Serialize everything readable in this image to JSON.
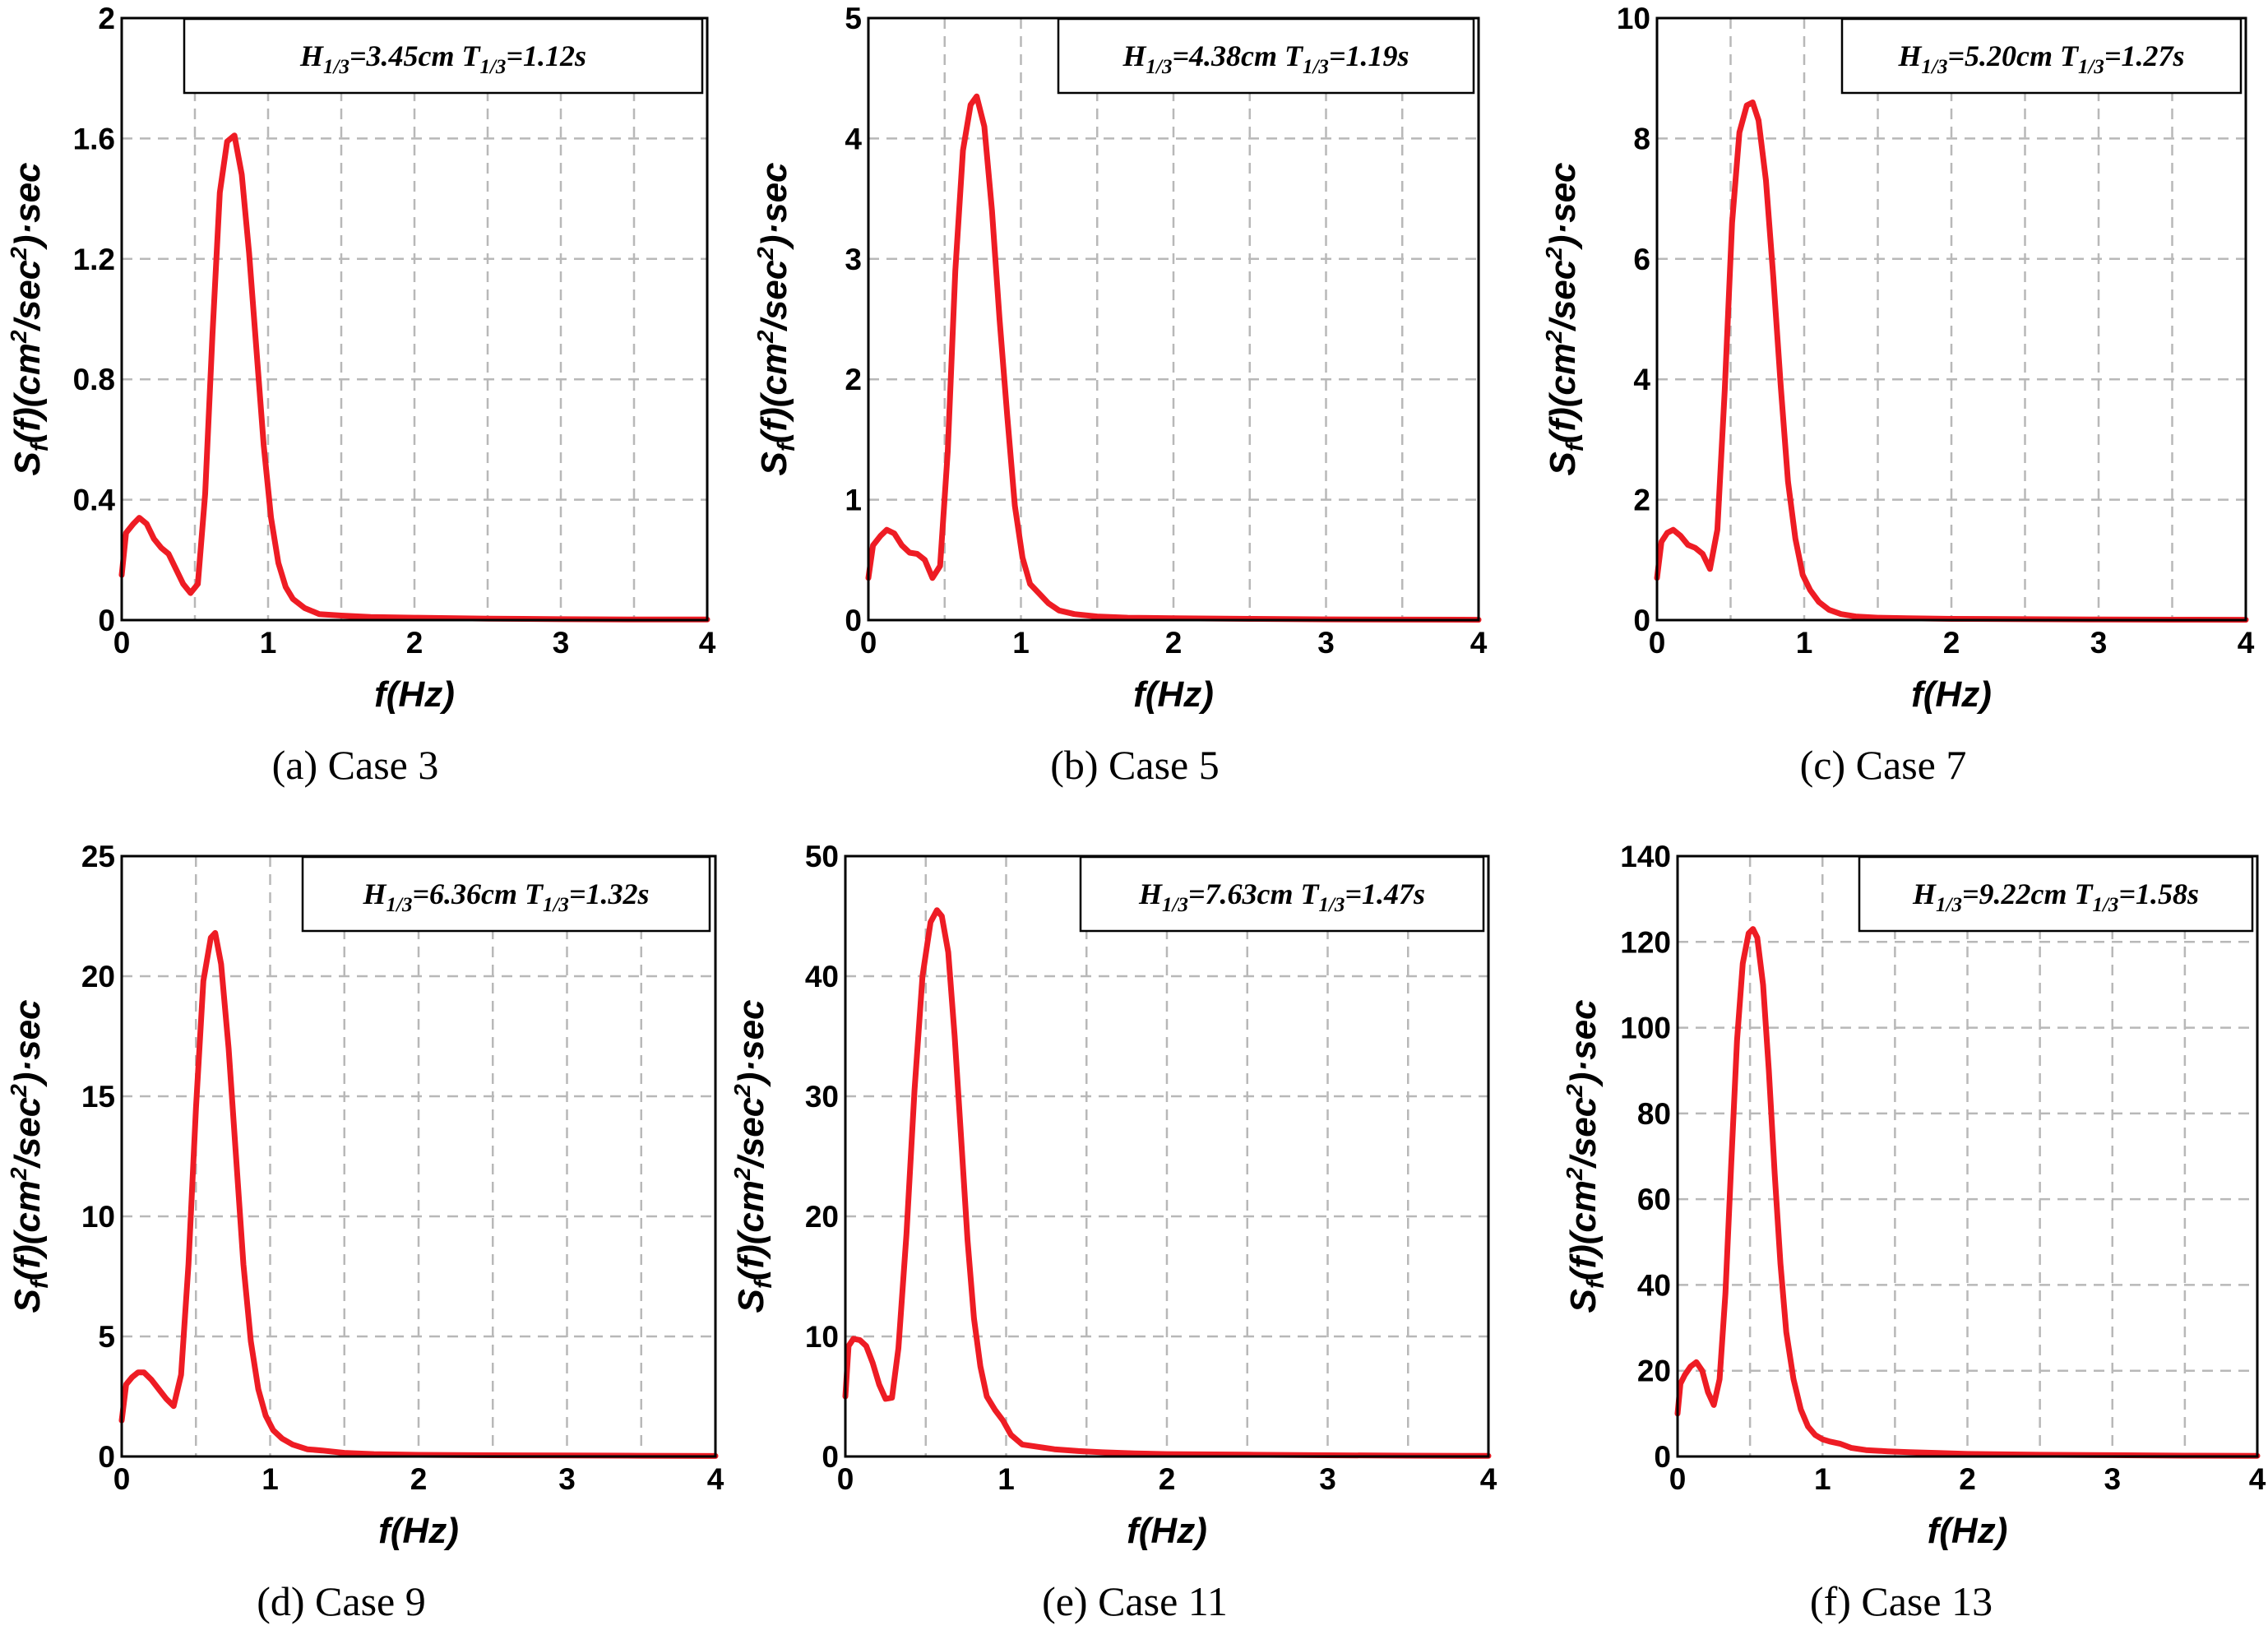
{
  "chart_data": [
    {
      "type": "line",
      "caption": "(a) Case 3",
      "legend": {
        "h_label": "H",
        "h_sub": "1/3",
        "h_value": "=3.45cm",
        "t_label": "T",
        "t_sub": "1/3",
        "t_value": "=1.12s"
      },
      "xlabel": "f(Hz)",
      "ylabel": "Sf(f)(cm2/sec2)·sec",
      "xlim": [
        0,
        4
      ],
      "ylim": [
        0,
        2
      ],
      "xticks": [
        0,
        1,
        2,
        3,
        4
      ],
      "yticks": [
        0,
        0.4,
        0.8,
        1.2,
        1.6,
        2
      ],
      "ytick_labels": [
        "0",
        "0.4",
        "0.8",
        "1.2",
        "1.6",
        "2"
      ],
      "grid": true,
      "series": [
        {
          "name": "Sf(f)",
          "color": "#ee1c24",
          "x": [
            0,
            0.03,
            0.08,
            0.12,
            0.17,
            0.22,
            0.27,
            0.32,
            0.37,
            0.42,
            0.47,
            0.52,
            0.57,
            0.62,
            0.67,
            0.72,
            0.77,
            0.82,
            0.87,
            0.92,
            0.97,
            1.02,
            1.07,
            1.12,
            1.17,
            1.25,
            1.35,
            1.5,
            1.7,
            2.0,
            2.5,
            3.0,
            3.5,
            4.0
          ],
          "y": [
            0.15,
            0.29,
            0.32,
            0.34,
            0.32,
            0.27,
            0.24,
            0.22,
            0.17,
            0.12,
            0.09,
            0.12,
            0.42,
            0.95,
            1.42,
            1.59,
            1.61,
            1.48,
            1.22,
            0.9,
            0.58,
            0.34,
            0.19,
            0.11,
            0.07,
            0.04,
            0.02,
            0.015,
            0.01,
            0.008,
            0.005,
            0.003,
            0.002,
            0.002
          ]
        }
      ]
    },
    {
      "type": "line",
      "caption": "(b) Case 5",
      "legend": {
        "h_label": "H",
        "h_sub": "1/3",
        "h_value": "=4.38cm",
        "t_label": "T",
        "t_sub": "1/3",
        "t_value": "=1.19s"
      },
      "xlabel": "f(Hz)",
      "ylabel": "Sf(f)(cm2/sec2)·sec",
      "xlim": [
        0,
        4
      ],
      "ylim": [
        0,
        5
      ],
      "xticks": [
        0,
        1,
        2,
        3,
        4
      ],
      "yticks": [
        0,
        1,
        2,
        3,
        4,
        5
      ],
      "ytick_labels": [
        "0",
        "1",
        "2",
        "3",
        "4",
        "5"
      ],
      "grid": true,
      "series": [
        {
          "name": "Sf(f)",
          "color": "#ee1c24",
          "x": [
            0,
            0.03,
            0.08,
            0.12,
            0.17,
            0.22,
            0.27,
            0.32,
            0.37,
            0.42,
            0.47,
            0.52,
            0.57,
            0.62,
            0.67,
            0.71,
            0.76,
            0.81,
            0.86,
            0.91,
            0.96,
            1.01,
            1.06,
            1.12,
            1.18,
            1.25,
            1.35,
            1.5,
            1.7,
            2.0,
            2.5,
            3.0,
            3.5,
            4.0
          ],
          "y": [
            0.35,
            0.62,
            0.7,
            0.75,
            0.72,
            0.62,
            0.56,
            0.55,
            0.5,
            0.35,
            0.45,
            1.4,
            2.9,
            3.9,
            4.28,
            4.35,
            4.1,
            3.4,
            2.5,
            1.7,
            0.95,
            0.52,
            0.3,
            0.22,
            0.14,
            0.08,
            0.05,
            0.03,
            0.02,
            0.015,
            0.01,
            0.006,
            0.004,
            0.003
          ]
        }
      ]
    },
    {
      "type": "line",
      "caption": "(c) Case 7",
      "legend": {
        "h_label": "H",
        "h_sub": "1/3",
        "h_value": "=5.20cm",
        "t_label": "T",
        "t_sub": "1/3",
        "t_value": "=1.27s"
      },
      "xlabel": "f(Hz)",
      "ylabel": "Sf(f)(cm2/sec2)·sec",
      "xlim": [
        0,
        4
      ],
      "ylim": [
        0,
        10
      ],
      "xticks": [
        0,
        1,
        2,
        3,
        4
      ],
      "yticks": [
        0,
        2,
        4,
        6,
        8,
        10
      ],
      "ytick_labels": [
        "0",
        "2",
        "4",
        "6",
        "8",
        "10"
      ],
      "grid": true,
      "series": [
        {
          "name": "Sf(f)",
          "color": "#ee1c24",
          "x": [
            0,
            0.03,
            0.07,
            0.11,
            0.16,
            0.21,
            0.26,
            0.31,
            0.36,
            0.41,
            0.46,
            0.51,
            0.56,
            0.61,
            0.65,
            0.69,
            0.74,
            0.79,
            0.84,
            0.89,
            0.94,
            0.99,
            1.04,
            1.1,
            1.17,
            1.25,
            1.35,
            1.5,
            1.7,
            2.0,
            2.5,
            3.0,
            3.5,
            4.0
          ],
          "y": [
            0.7,
            1.3,
            1.45,
            1.5,
            1.4,
            1.25,
            1.2,
            1.1,
            0.85,
            1.5,
            3.8,
            6.6,
            8.1,
            8.55,
            8.6,
            8.3,
            7.3,
            5.7,
            3.9,
            2.3,
            1.35,
            0.75,
            0.5,
            0.3,
            0.17,
            0.1,
            0.06,
            0.04,
            0.03,
            0.02,
            0.015,
            0.01,
            0.007,
            0.005
          ]
        }
      ]
    },
    {
      "type": "line",
      "caption": "(d) Case 9",
      "legend": {
        "h_label": "H",
        "h_sub": "1/3",
        "h_value": "=6.36cm",
        "t_label": "T",
        "t_sub": "1/3",
        "t_value": "=1.32s"
      },
      "xlabel": "f(Hz)",
      "ylabel": "Sf(f)(cm2/sec2)·sec",
      "xlim": [
        0,
        4
      ],
      "ylim": [
        0,
        25
      ],
      "xticks": [
        0,
        1,
        2,
        3,
        4
      ],
      "yticks": [
        0,
        5,
        10,
        15,
        20,
        25
      ],
      "ytick_labels": [
        "0",
        "5",
        "10",
        "15",
        "20",
        "25"
      ],
      "grid": true,
      "series": [
        {
          "name": "Sf(f)",
          "color": "#ee1c24",
          "x": [
            0,
            0.03,
            0.07,
            0.11,
            0.15,
            0.2,
            0.25,
            0.3,
            0.35,
            0.4,
            0.45,
            0.5,
            0.55,
            0.6,
            0.63,
            0.67,
            0.72,
            0.77,
            0.82,
            0.87,
            0.92,
            0.97,
            1.02,
            1.08,
            1.15,
            1.25,
            1.35,
            1.5,
            1.7,
            2.0,
            2.5,
            3.0,
            3.5,
            4.0
          ],
          "y": [
            1.5,
            3.0,
            3.3,
            3.5,
            3.5,
            3.2,
            2.8,
            2.4,
            2.1,
            3.4,
            8.0,
            14.5,
            19.8,
            21.6,
            21.8,
            20.5,
            17.0,
            12.5,
            8.0,
            4.8,
            2.8,
            1.7,
            1.1,
            0.75,
            0.5,
            0.3,
            0.25,
            0.15,
            0.1,
            0.07,
            0.05,
            0.04,
            0.03,
            0.02
          ]
        }
      ]
    },
    {
      "type": "line",
      "caption": "(e) Case 11",
      "legend": {
        "h_label": "H",
        "h_sub": "1/3",
        "h_value": "=7.63cm",
        "t_label": "T",
        "t_sub": "1/3",
        "t_value": "=1.47s"
      },
      "xlabel": "f(Hz)",
      "ylabel": "Sf(f)(cm2/sec2)·sec",
      "xlim": [
        0,
        4
      ],
      "ylim": [
        0,
        50
      ],
      "xticks": [
        0,
        1,
        2,
        3,
        4
      ],
      "yticks": [
        0,
        10,
        20,
        30,
        40,
        50
      ],
      "ytick_labels": [
        "0",
        "10",
        "20",
        "30",
        "40",
        "50"
      ],
      "grid": true,
      "series": [
        {
          "name": "Sf(f)",
          "color": "#ee1c24",
          "x": [
            0,
            0.02,
            0.05,
            0.09,
            0.13,
            0.17,
            0.21,
            0.25,
            0.29,
            0.33,
            0.38,
            0.43,
            0.48,
            0.53,
            0.57,
            0.6,
            0.64,
            0.68,
            0.72,
            0.76,
            0.8,
            0.84,
            0.88,
            0.93,
            0.98,
            1.03,
            1.1,
            1.2,
            1.3,
            1.45,
            1.6,
            1.8,
            2.0,
            2.5,
            3.0,
            3.5,
            4.0
          ],
          "y": [
            5.0,
            9.2,
            9.8,
            9.7,
            9.2,
            7.8,
            6.0,
            4.8,
            4.9,
            9.0,
            18.5,
            30.5,
            40.0,
            44.5,
            45.5,
            45.0,
            42.0,
            35.0,
            26.5,
            18.0,
            11.5,
            7.5,
            5.0,
            3.9,
            3.0,
            1.8,
            1.0,
            0.8,
            0.6,
            0.45,
            0.35,
            0.25,
            0.2,
            0.15,
            0.1,
            0.07,
            0.05
          ]
        }
      ]
    },
    {
      "type": "line",
      "caption": "(f) Case 13",
      "legend": {
        "h_label": "H",
        "h_sub": "1/3",
        "h_value": "=9.22cm",
        "t_label": "T",
        "t_sub": "1/3",
        "t_value": "=1.58s"
      },
      "xlabel": "f(Hz)",
      "ylabel": "Sf(f)(cm2/sec2)·sec",
      "xlim": [
        0,
        4
      ],
      "ylim": [
        0,
        140
      ],
      "xticks": [
        0,
        1,
        2,
        3,
        4
      ],
      "yticks": [
        0,
        20,
        40,
        60,
        80,
        100,
        120,
        140
      ],
      "ytick_labels": [
        "0",
        "20",
        "40",
        "60",
        "80",
        "100",
        "120",
        "140"
      ],
      "grid": true,
      "series": [
        {
          "name": "Sf(f)",
          "color": "#ee1c24",
          "x": [
            0,
            0.02,
            0.05,
            0.09,
            0.13,
            0.17,
            0.21,
            0.25,
            0.29,
            0.33,
            0.37,
            0.41,
            0.45,
            0.49,
            0.52,
            0.55,
            0.59,
            0.63,
            0.67,
            0.71,
            0.75,
            0.8,
            0.85,
            0.9,
            0.95,
            1.0,
            1.05,
            1.12,
            1.2,
            1.3,
            1.45,
            1.6,
            1.8,
            2.0,
            2.5,
            3.0,
            3.5,
            4.0
          ],
          "y": [
            10,
            17,
            19,
            21,
            22,
            20,
            15,
            12,
            18,
            38,
            68,
            97,
            115,
            122,
            123,
            121,
            110,
            90,
            66,
            45,
            29,
            18,
            11,
            7,
            5,
            4,
            3.5,
            3,
            2,
            1.5,
            1.2,
            1,
            0.8,
            0.6,
            0.4,
            0.3,
            0.2,
            0.15
          ]
        }
      ]
    }
  ]
}
